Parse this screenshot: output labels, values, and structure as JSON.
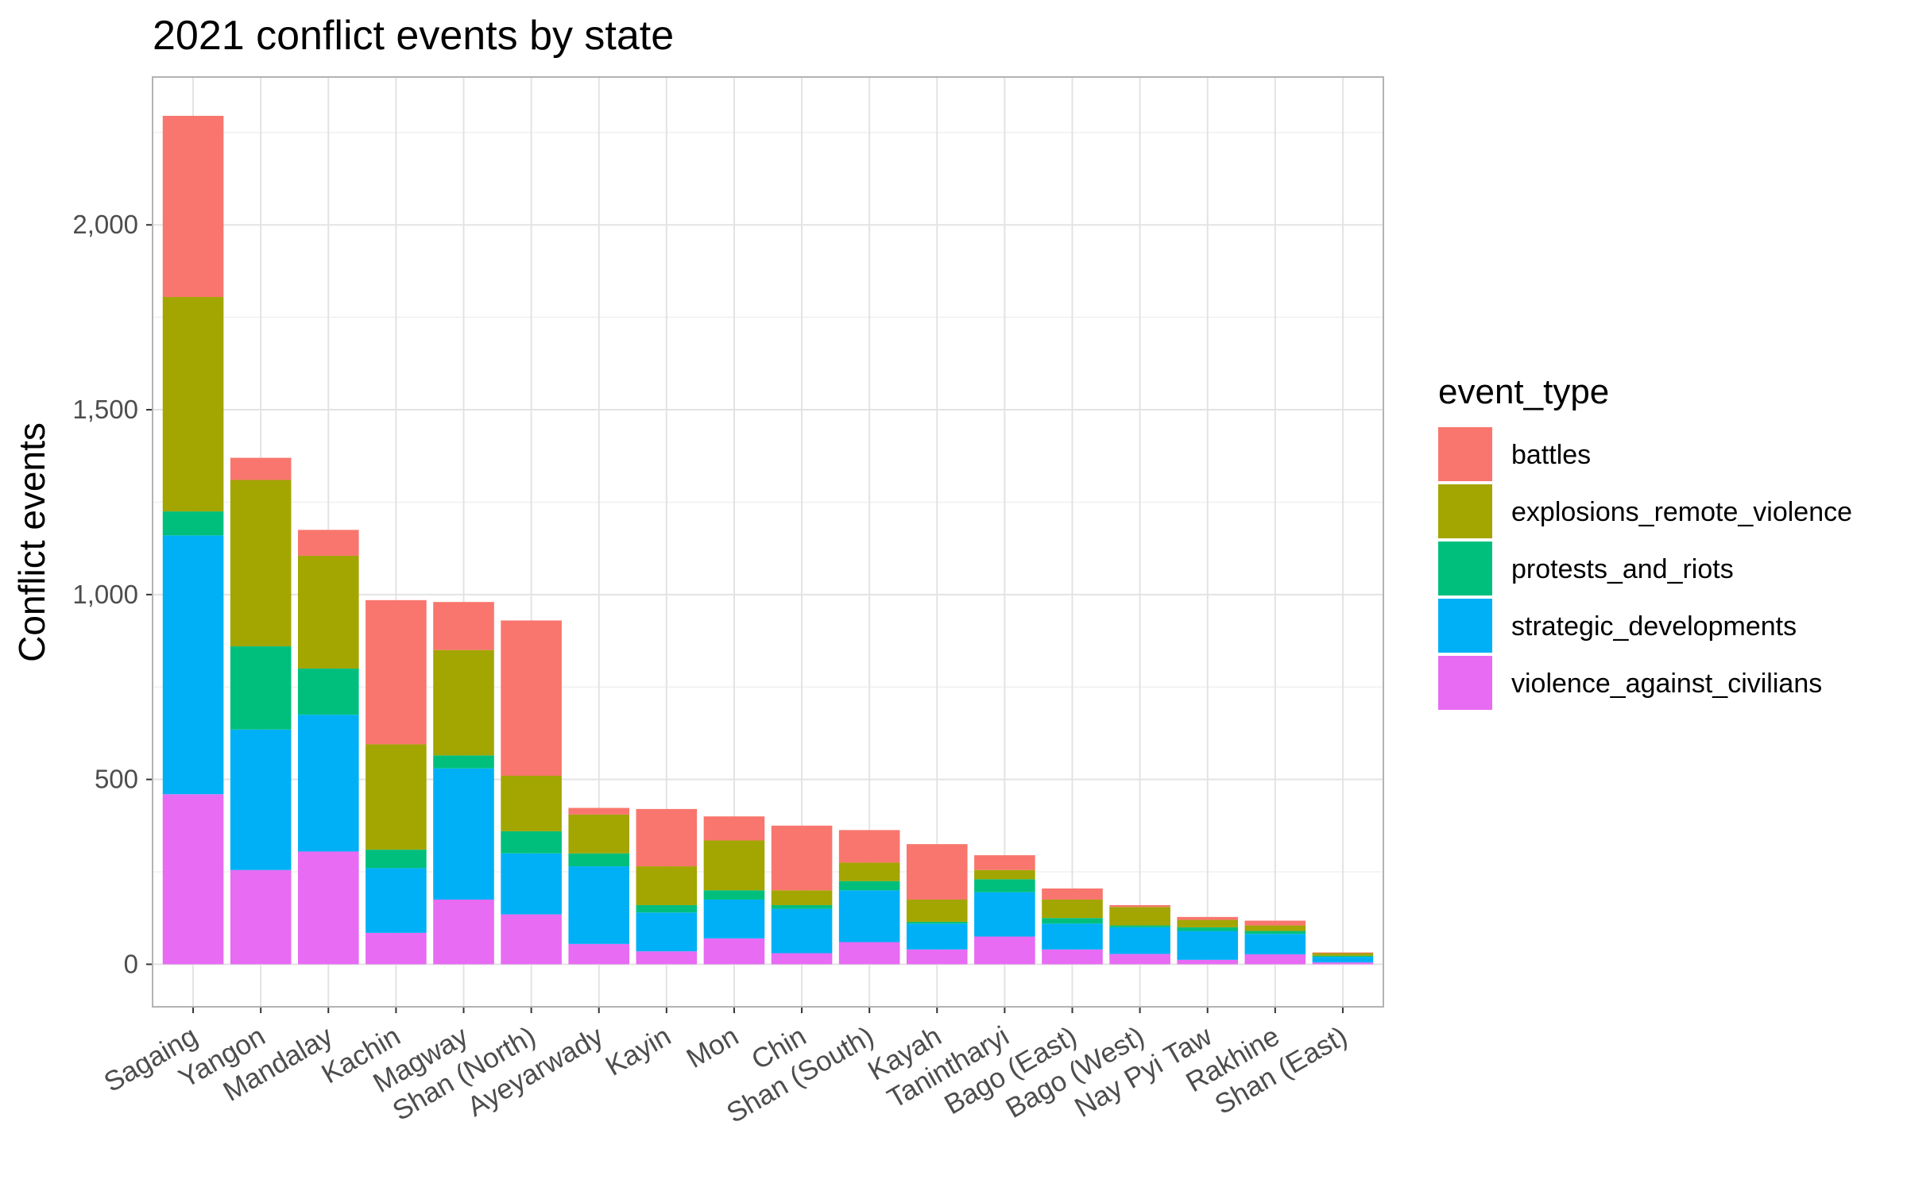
{
  "chart_data": {
    "type": "bar",
    "stacked": true,
    "title": "2021 conflict events by state",
    "xlabel": "",
    "ylabel": "Conflict events",
    "ylim": [
      -115,
      2400
    ],
    "yticks": [
      0,
      500,
      1000,
      1500,
      2000
    ],
    "ytick_labels": [
      "0",
      "500",
      "1,000",
      "1,500",
      "2,000"
    ],
    "grid": true,
    "legend": {
      "title": "event_type",
      "position": "right"
    },
    "categories": [
      "Sagaing",
      "Yangon",
      "Mandalay",
      "Kachin",
      "Magway",
      "Shan (North)",
      "Ayeyarwady",
      "Kayin",
      "Mon",
      "Chin",
      "Shan (South)",
      "Kayah",
      "Tanintharyi",
      "Bago (East)",
      "Bago (West)",
      "Nay Pyi Taw",
      "Rakhine",
      "Shan (East)"
    ],
    "series": [
      {
        "name": "violence_against_civilians",
        "color": "#E76BF3",
        "values": [
          460,
          255,
          305,
          85,
          175,
          135,
          55,
          35,
          70,
          30,
          60,
          40,
          75,
          40,
          28,
          12,
          27,
          5
        ]
      },
      {
        "name": "strategic_developments",
        "color": "#00B0F6",
        "values": [
          700,
          380,
          370,
          175,
          355,
          165,
          210,
          105,
          105,
          120,
          140,
          70,
          120,
          70,
          72,
          78,
          55,
          15
        ]
      },
      {
        "name": "protests_and_riots",
        "color": "#00BF7D",
        "values": [
          65,
          225,
          125,
          50,
          35,
          60,
          35,
          20,
          25,
          10,
          25,
          5,
          35,
          15,
          5,
          10,
          8,
          3
        ]
      },
      {
        "name": "explosions_remote_violence",
        "color": "#A3A500",
        "values": [
          580,
          450,
          305,
          285,
          285,
          150,
          105,
          105,
          135,
          40,
          50,
          60,
          25,
          50,
          50,
          20,
          15,
          7
        ]
      },
      {
        "name": "battles",
        "color": "#F8766D",
        "values": [
          490,
          60,
          70,
          390,
          130,
          420,
          18,
          155,
          65,
          175,
          88,
          150,
          40,
          30,
          5,
          8,
          13,
          2
        ]
      }
    ],
    "legend_order": [
      "battles",
      "explosions_remote_violence",
      "protests_and_riots",
      "strategic_developments",
      "violence_against_civilians"
    ]
  }
}
